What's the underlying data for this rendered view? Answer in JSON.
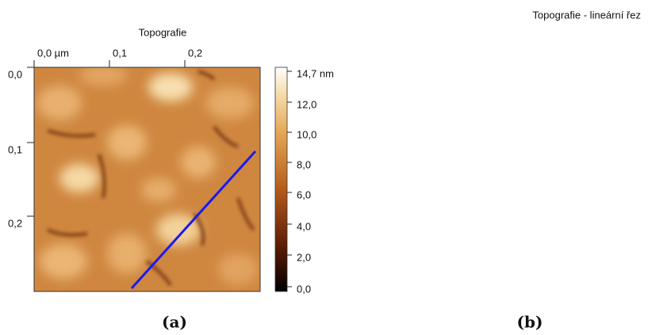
{
  "panel_a": {
    "title": "Topografie",
    "x_ticks": [
      "0,0 µm",
      "0,1",
      "0,2"
    ],
    "y_ticks": [
      "0,0",
      "0,1",
      "0,2"
    ],
    "colorbar_ticks": [
      "14,7 nm",
      "12,0",
      "10,0",
      "8,0",
      "6,0",
      "4,0",
      "2,0",
      "0,0"
    ],
    "caption": "(a)"
  },
  "panel_b": {
    "title": "Topografie - lineární řez",
    "caption": "(b)"
  }
}
